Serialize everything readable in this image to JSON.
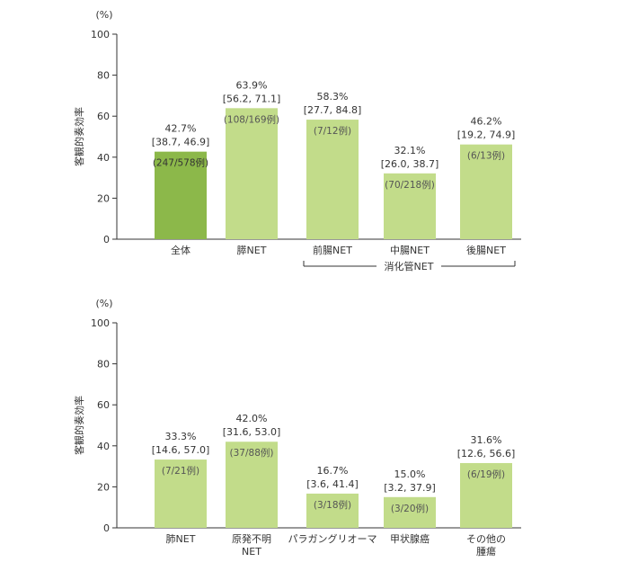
{
  "chart_data": [
    {
      "type": "bar",
      "ylabel": "客観的奏効率",
      "unit": "(%)",
      "ylim": [
        0,
        100
      ],
      "yticks": [
        "0",
        "20",
        "40",
        "60",
        "80",
        "100"
      ],
      "bars": [
        {
          "category": "全体",
          "value": 42.7,
          "pct_label": "42.7%",
          "ci_label": "[38.7, 46.9]",
          "n_label": "(247/578例)",
          "color": "#8cb84a",
          "text_color": "#333333"
        },
        {
          "category": "膵NET",
          "value": 63.9,
          "pct_label": "63.9%",
          "ci_label": "[56.2, 71.1]",
          "n_label": "(108/169例)",
          "color": "#c2dc8a",
          "text_color": "#555555"
        },
        {
          "category": "前腸NET",
          "value": 58.3,
          "pct_label": "58.3%",
          "ci_label": "[27.7, 84.8]",
          "n_label": "(7/12例)",
          "color": "#c2dc8a",
          "text_color": "#555555"
        },
        {
          "category": "中腸NET",
          "value": 32.1,
          "pct_label": "32.1%",
          "ci_label": "[26.0, 38.7]",
          "n_label": "(70/218例)",
          "color": "#c2dc8a",
          "text_color": "#555555"
        },
        {
          "category": "後腸NET",
          "value": 46.2,
          "pct_label": "46.2%",
          "ci_label": "[19.2, 74.9]",
          "n_label": "(6/13例)",
          "color": "#c2dc8a",
          "text_color": "#555555"
        }
      ],
      "group_label": "消化管NET"
    },
    {
      "type": "bar",
      "ylabel": "客観的奏効率",
      "unit": "(%)",
      "ylim": [
        0,
        100
      ],
      "yticks": [
        "0",
        "20",
        "40",
        "60",
        "80",
        "100"
      ],
      "bars": [
        {
          "category": "肺NET",
          "value": 33.3,
          "pct_label": "33.3%",
          "ci_label": "[14.6, 57.0]",
          "n_label": "(7/21例)",
          "color": "#c2dc8a",
          "text_color": "#555555"
        },
        {
          "category": "原発不明\nNET",
          "value": 42.0,
          "pct_label": "42.0%",
          "ci_label": "[31.6, 53.0]",
          "n_label": "(37/88例)",
          "color": "#c2dc8a",
          "text_color": "#555555"
        },
        {
          "category": "パラガングリオーマ",
          "value": 16.7,
          "pct_label": "16.7%",
          "ci_label": "[3.6, 41.4]",
          "n_label": "(3/18例)",
          "color": "#c2dc8a",
          "text_color": "#555555"
        },
        {
          "category": "甲状腺癌",
          "value": 15.0,
          "pct_label": "15.0%",
          "ci_label": "[3.2, 37.9]",
          "n_label": "(3/20例)",
          "color": "#c2dc8a",
          "text_color": "#555555"
        },
        {
          "category": "その他の\n腫瘍",
          "value": 31.6,
          "pct_label": "31.6%",
          "ci_label": "[12.6, 56.6]",
          "n_label": "(6/19例)",
          "color": "#c2dc8a",
          "text_color": "#555555"
        }
      ]
    }
  ]
}
